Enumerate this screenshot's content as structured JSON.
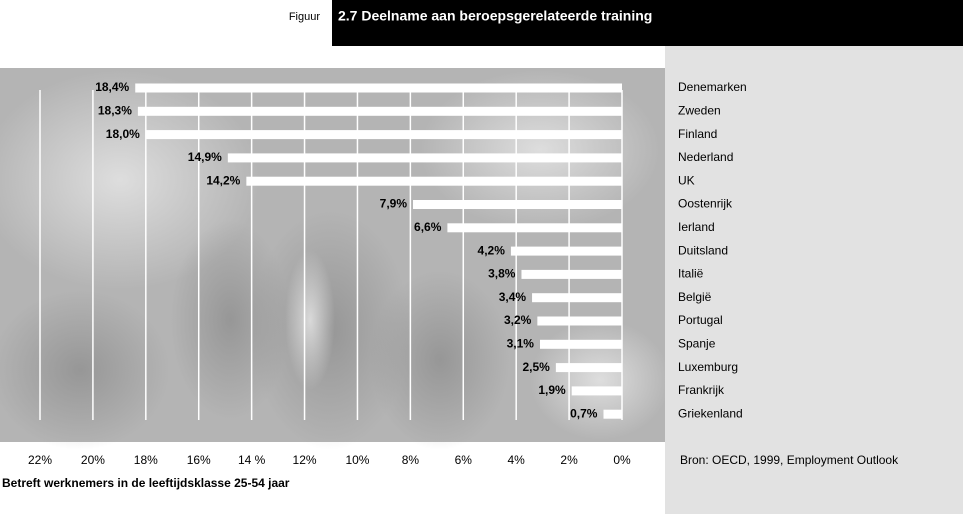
{
  "chart_data": {
    "type": "bar",
    "orientation": "horizontal",
    "figure_label": "Figuur",
    "title": "2.7  Deelname aan beroepsgerelateerde training",
    "categories": [
      "Denemarken",
      "Zweden",
      "Finland",
      "Nederland",
      "UK",
      "Oostenrijk",
      "Ierland",
      "Duitsland",
      "Italië",
      "België",
      "Portugal",
      "Spanje",
      "Luxemburg",
      "Frankrijk",
      "Griekenland"
    ],
    "values": [
      18.4,
      18.3,
      18.0,
      14.9,
      14.2,
      7.9,
      6.6,
      4.2,
      3.8,
      3.4,
      3.2,
      3.1,
      2.5,
      1.9,
      0.7
    ],
    "value_labels": [
      "18,4%",
      "18,3%",
      "18,0%",
      "14,9%",
      "14,2%",
      "7,9%",
      "6,6%",
      "4,2%",
      "3,8%",
      "3,4%",
      "3,2%",
      "3,1%",
      "2,5%",
      "1,9%",
      "0,7%"
    ],
    "color": "#ffffff",
    "xlim": [
      22,
      0
    ],
    "xticks": [
      {
        "value": 22,
        "label": "22%"
      },
      {
        "value": 20,
        "label": "20%"
      },
      {
        "value": 18,
        "label": "18%"
      },
      {
        "value": 16,
        "label": "16%"
      },
      {
        "value": 14,
        "label": "14 %"
      },
      {
        "value": 12,
        "label": "12%"
      },
      {
        "value": 10,
        "label": "10%"
      },
      {
        "value": 8,
        "label": "8%"
      },
      {
        "value": 6,
        "label": "6%"
      },
      {
        "value": 4,
        "label": "4%"
      },
      {
        "value": 2,
        "label": "2%"
      },
      {
        "value": 0,
        "label": "0%"
      }
    ],
    "grid": true,
    "note": "Betreft werknemers in de leeftijdsklasse 25-54 jaar",
    "source": "Bron: OECD, 1999, Employment Outlook"
  }
}
